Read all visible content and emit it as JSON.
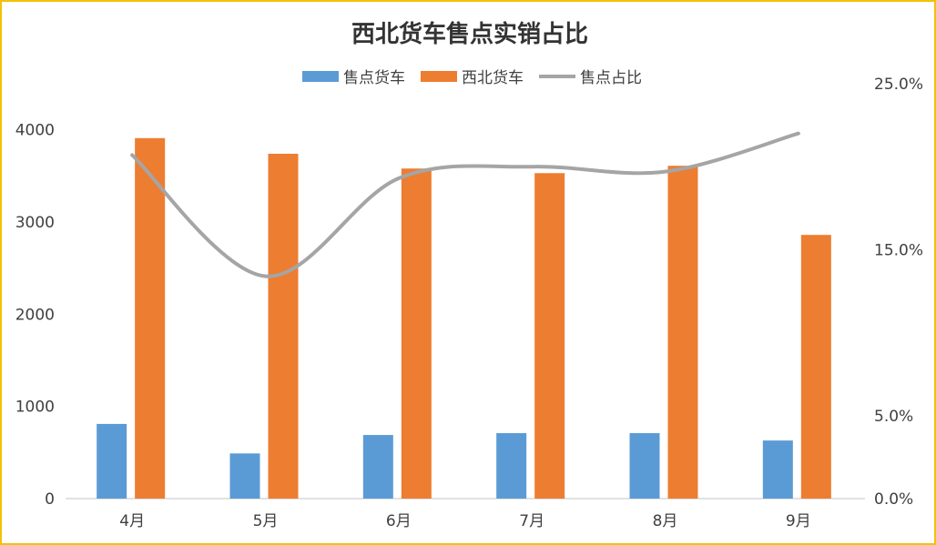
{
  "chart_data": {
    "type": "bar",
    "title": "西北货车售点实销占比",
    "categories": [
      "4月",
      "5月",
      "6月",
      "7月",
      "8月",
      "9月"
    ],
    "series": [
      {
        "name": "售点货车",
        "kind": "bar",
        "axis": "left",
        "color": "#5b9bd5",
        "values": [
          810,
          490,
          690,
          710,
          710,
          630
        ]
      },
      {
        "name": "西北货车",
        "kind": "bar",
        "axis": "left",
        "color": "#ed7d31",
        "values": [
          3910,
          3740,
          3580,
          3530,
          3610,
          2860
        ]
      },
      {
        "name": "售点占比",
        "kind": "line",
        "smooth": true,
        "axis": "right",
        "color": "#a5a5a5",
        "values": [
          0.207,
          0.134,
          0.193,
          0.2,
          0.197,
          0.22
        ]
      }
    ],
    "y_left": {
      "ylim": [
        0,
        4500
      ],
      "ticks": [
        "0",
        "1000",
        "2000",
        "3000",
        "4000"
      ]
    },
    "y_right": {
      "ylim": [
        0,
        0.25
      ],
      "ticks": [
        "0.0%",
        "5.0%",
        "15.0%",
        "25.0%"
      ]
    },
    "xlabel": "",
    "ylabel": "",
    "grid": false,
    "legend_position": "top"
  }
}
